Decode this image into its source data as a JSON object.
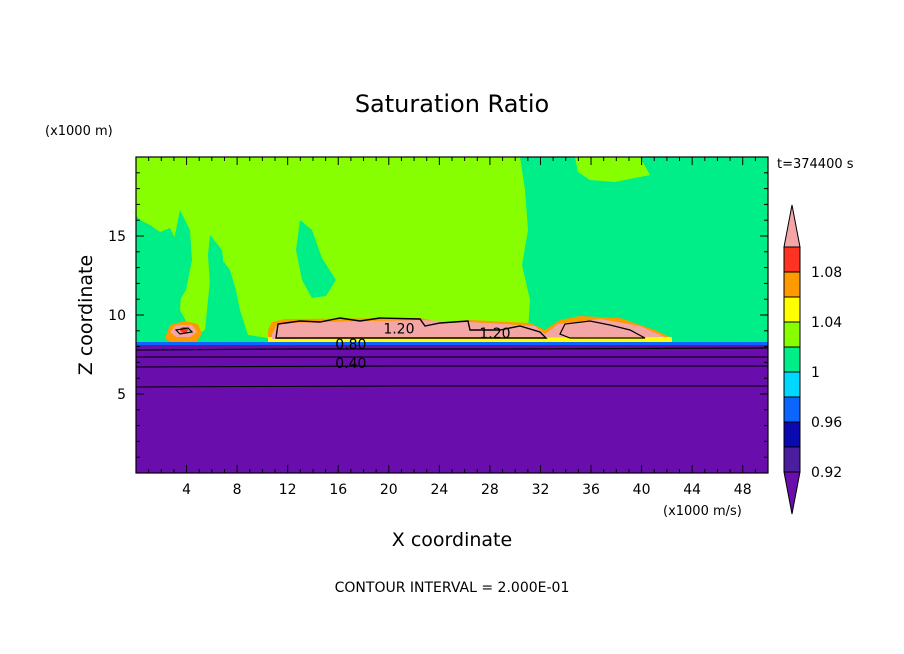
{
  "chart_data": {
    "type": "contour",
    "title": "Saturation Ratio",
    "xlabel": "X coordinate",
    "ylabel": "Z coordinate",
    "x_unit": "(x1000 m/s)",
    "y_unit": "(x1000 m)",
    "time_label": "t=374400 s",
    "footer": "CONTOUR INTERVAL = 2.000E-01",
    "xlim": [
      0,
      50
    ],
    "ylim": [
      0,
      20
    ],
    "x_ticks": [
      "4",
      "8",
      "12",
      "16",
      "20",
      "24",
      "28",
      "32",
      "36",
      "40",
      "44",
      "48"
    ],
    "x_tick_values": [
      4,
      8,
      12,
      16,
      20,
      24,
      28,
      32,
      36,
      40,
      44,
      48
    ],
    "y_ticks": [
      "5",
      "10",
      "15"
    ],
    "y_tick_values": [
      5,
      10,
      15
    ],
    "contour_interval": 0.2,
    "contour_labels": [
      {
        "text": "1.20",
        "x": 20.8,
        "z": 8.9
      },
      {
        "text": "1.20",
        "x": 28.4,
        "z": 8.6
      },
      {
        "text": "0.80",
        "x": 17.0,
        "z": 7.9
      },
      {
        "text": "0.40",
        "x": 17.0,
        "z": 6.7
      }
    ],
    "colorbar": {
      "levels": [
        0.92,
        0.94,
        0.96,
        0.98,
        1.0,
        1.02,
        1.04,
        1.06,
        1.08,
        1.1
      ],
      "labels": [
        "0.92",
        "0.96",
        "1",
        "1.04",
        "1.08"
      ],
      "label_values": [
        0.92,
        0.96,
        1.0,
        1.04,
        1.08
      ],
      "colors": [
        "#6a0dad",
        "#4b1e9e",
        "#0a0ab0",
        "#0a66ff",
        "#00d8ff",
        "#00ee88",
        "#88ff00",
        "#ffff00",
        "#ff9900",
        "#ff3322",
        "#f4a6a6"
      ]
    }
  }
}
